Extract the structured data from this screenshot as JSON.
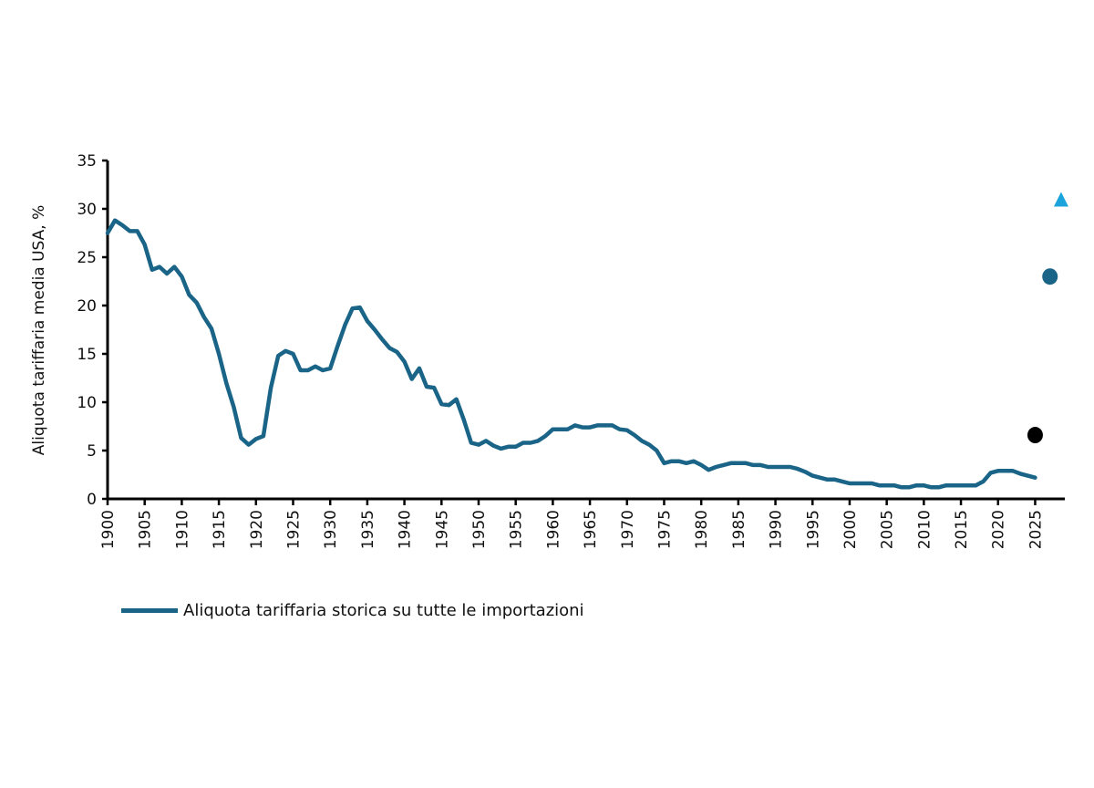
{
  "chart_data": {
    "type": "line",
    "title": "",
    "xlabel": "",
    "ylabel": "Aliquota tariffaria media USA, %",
    "xlim": [
      1900,
      2029
    ],
    "ylim": [
      0,
      35
    ],
    "yticks": [
      0,
      5,
      10,
      15,
      20,
      25,
      30,
      35
    ],
    "xticks": [
      1900,
      1905,
      1910,
      1915,
      1920,
      1925,
      1930,
      1935,
      1940,
      1945,
      1950,
      1955,
      1960,
      1965,
      1970,
      1975,
      1980,
      1985,
      1990,
      1995,
      2000,
      2005,
      2010,
      2015,
      2020,
      2025
    ],
    "grid": false,
    "legend_position": "bottom-left",
    "series": [
      {
        "name": "Aliquota tariffaria storica su tutte le importazioni",
        "color": "#1a6488",
        "x_start": 1900,
        "values": [
          27.5,
          28.8,
          28.3,
          27.7,
          27.7,
          26.3,
          23.7,
          24.0,
          23.3,
          24.0,
          23.0,
          21.1,
          20.3,
          18.8,
          17.6,
          15.0,
          12.0,
          9.5,
          6.3,
          5.6,
          6.2,
          6.5,
          11.5,
          14.8,
          15.3,
          15.0,
          13.3,
          13.3,
          13.7,
          13.3,
          13.5,
          15.8,
          18.0,
          19.7,
          19.8,
          18.4,
          17.5,
          16.5,
          15.6,
          15.2,
          14.2,
          12.4,
          13.5,
          11.6,
          11.5,
          9.8,
          9.7,
          10.3,
          8.2,
          5.8,
          5.6,
          6.0,
          5.5,
          5.2,
          5.4,
          5.4,
          5.8,
          5.8,
          6.0,
          6.5,
          7.2,
          7.2,
          7.2,
          7.6,
          7.4,
          7.4,
          7.6,
          7.6,
          7.6,
          7.2,
          7.1,
          6.6,
          6.0,
          5.6,
          5.0,
          3.7,
          3.9,
          3.9,
          3.7,
          3.9,
          3.5,
          3.0,
          3.3,
          3.5,
          3.7,
          3.7,
          3.7,
          3.5,
          3.5,
          3.3,
          3.3,
          3.3,
          3.3,
          3.1,
          2.8,
          2.4,
          2.2,
          2.0,
          2.0,
          1.8,
          1.6,
          1.6,
          1.6,
          1.6,
          1.4,
          1.4,
          1.4,
          1.2,
          1.2,
          1.4,
          1.4,
          1.2,
          1.2,
          1.4,
          1.4,
          1.4,
          1.4,
          1.4,
          1.8,
          2.7,
          2.9,
          2.9,
          2.9,
          2.6,
          2.4,
          2.2
        ]
      }
    ],
    "markers": [
      {
        "shape": "circle",
        "color": "#000000",
        "x": 2025,
        "y": 6.6
      },
      {
        "shape": "circle",
        "color": "#1a6488",
        "x": 2027,
        "y": 23.0
      },
      {
        "shape": "triangle",
        "color": "#1ba3dc",
        "x": 2028.5,
        "y": 30.9
      }
    ]
  }
}
